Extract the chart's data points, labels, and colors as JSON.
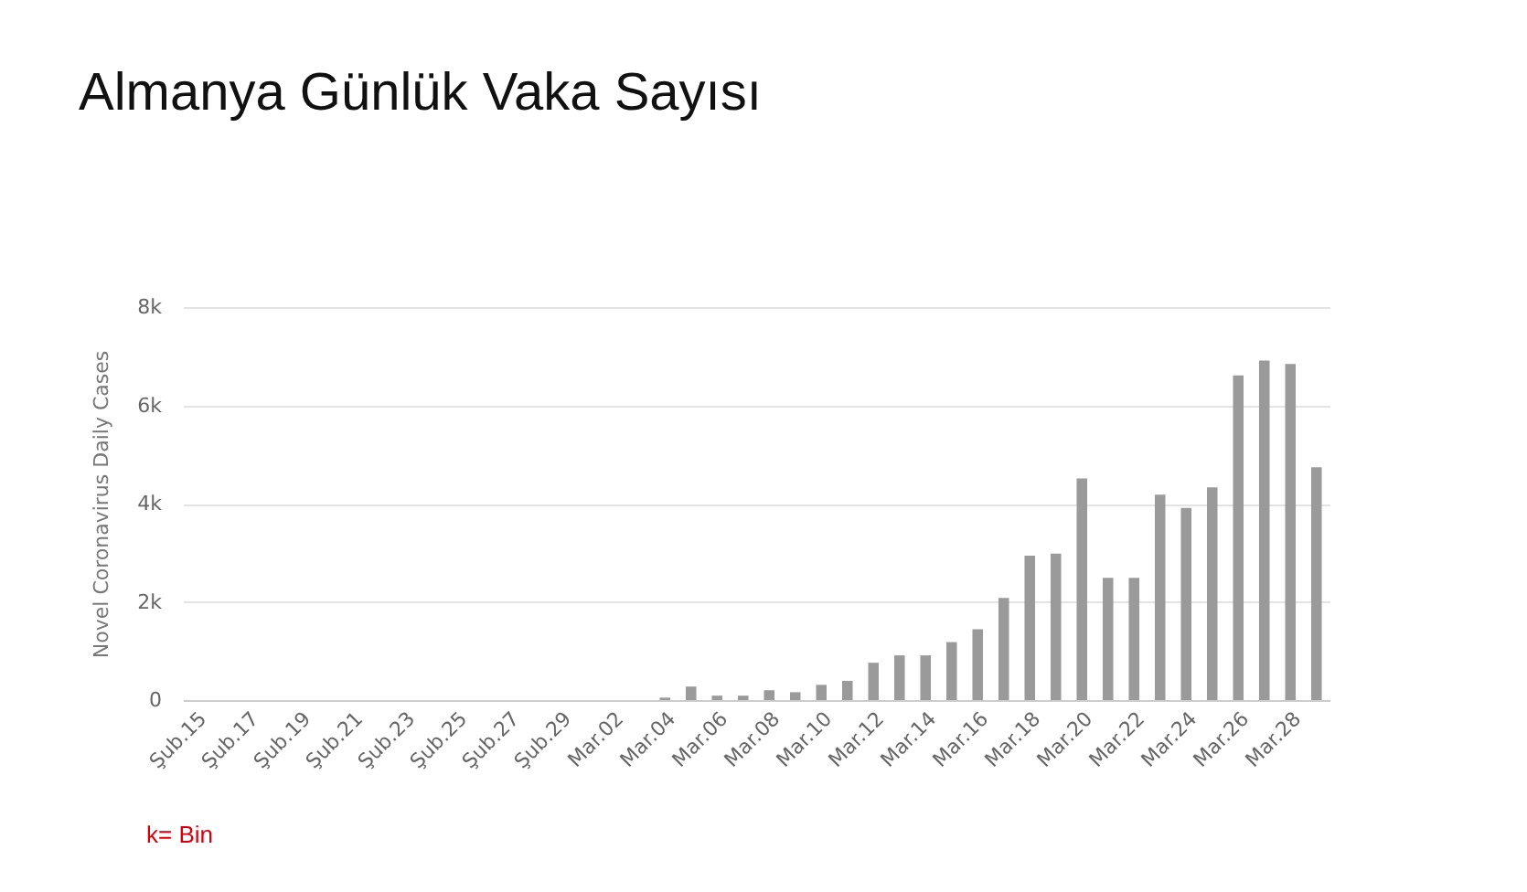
{
  "chart_data": {
    "type": "bar",
    "title": "Almanya Günlük Vaka Sayısı",
    "ylabel": "Novel Coronavirus Daily Cases",
    "categories": [
      "Şub.15",
      null,
      "Şub.17",
      null,
      "Şub.19",
      null,
      "Şub.21",
      null,
      "Şub.23",
      null,
      "Şub.25",
      null,
      "Şub.27",
      null,
      "Şub.29",
      null,
      "Mar.02",
      null,
      "Mar.04",
      null,
      "Mar.06",
      null,
      "Mar.08",
      null,
      "Mar.10",
      null,
      "Mar.12",
      null,
      "Mar.14",
      null,
      "Mar.16",
      null,
      "Mar.18",
      null,
      "Mar.20",
      null,
      "Mar.22",
      null,
      "Mar.24",
      null,
      "Mar.26",
      null,
      "Mar.28",
      null
    ],
    "values": [
      0,
      0,
      0,
      0,
      0,
      0,
      0,
      0,
      0,
      0,
      0,
      0,
      0,
      0,
      0,
      0,
      0,
      0,
      50,
      275,
      90,
      90,
      200,
      160,
      310,
      390,
      760,
      910,
      910,
      1180,
      1440,
      2080,
      2940,
      2980,
      4510,
      2490,
      2490,
      4180,
      3910,
      4330,
      6610,
      6910,
      6840,
      4740
    ],
    "color": "#9a9a9a",
    "ylim": [
      0,
      8000
    ],
    "yticks": [
      0,
      {
        "value": 2000,
        "label": "2k"
      },
      {
        "value": 4000,
        "label": "4k"
      },
      {
        "value": 6000,
        "label": "6k"
      },
      {
        "value": 8000,
        "label": "8k"
      }
    ],
    "grid": "y",
    "annotations": [
      "k= Bin"
    ]
  }
}
